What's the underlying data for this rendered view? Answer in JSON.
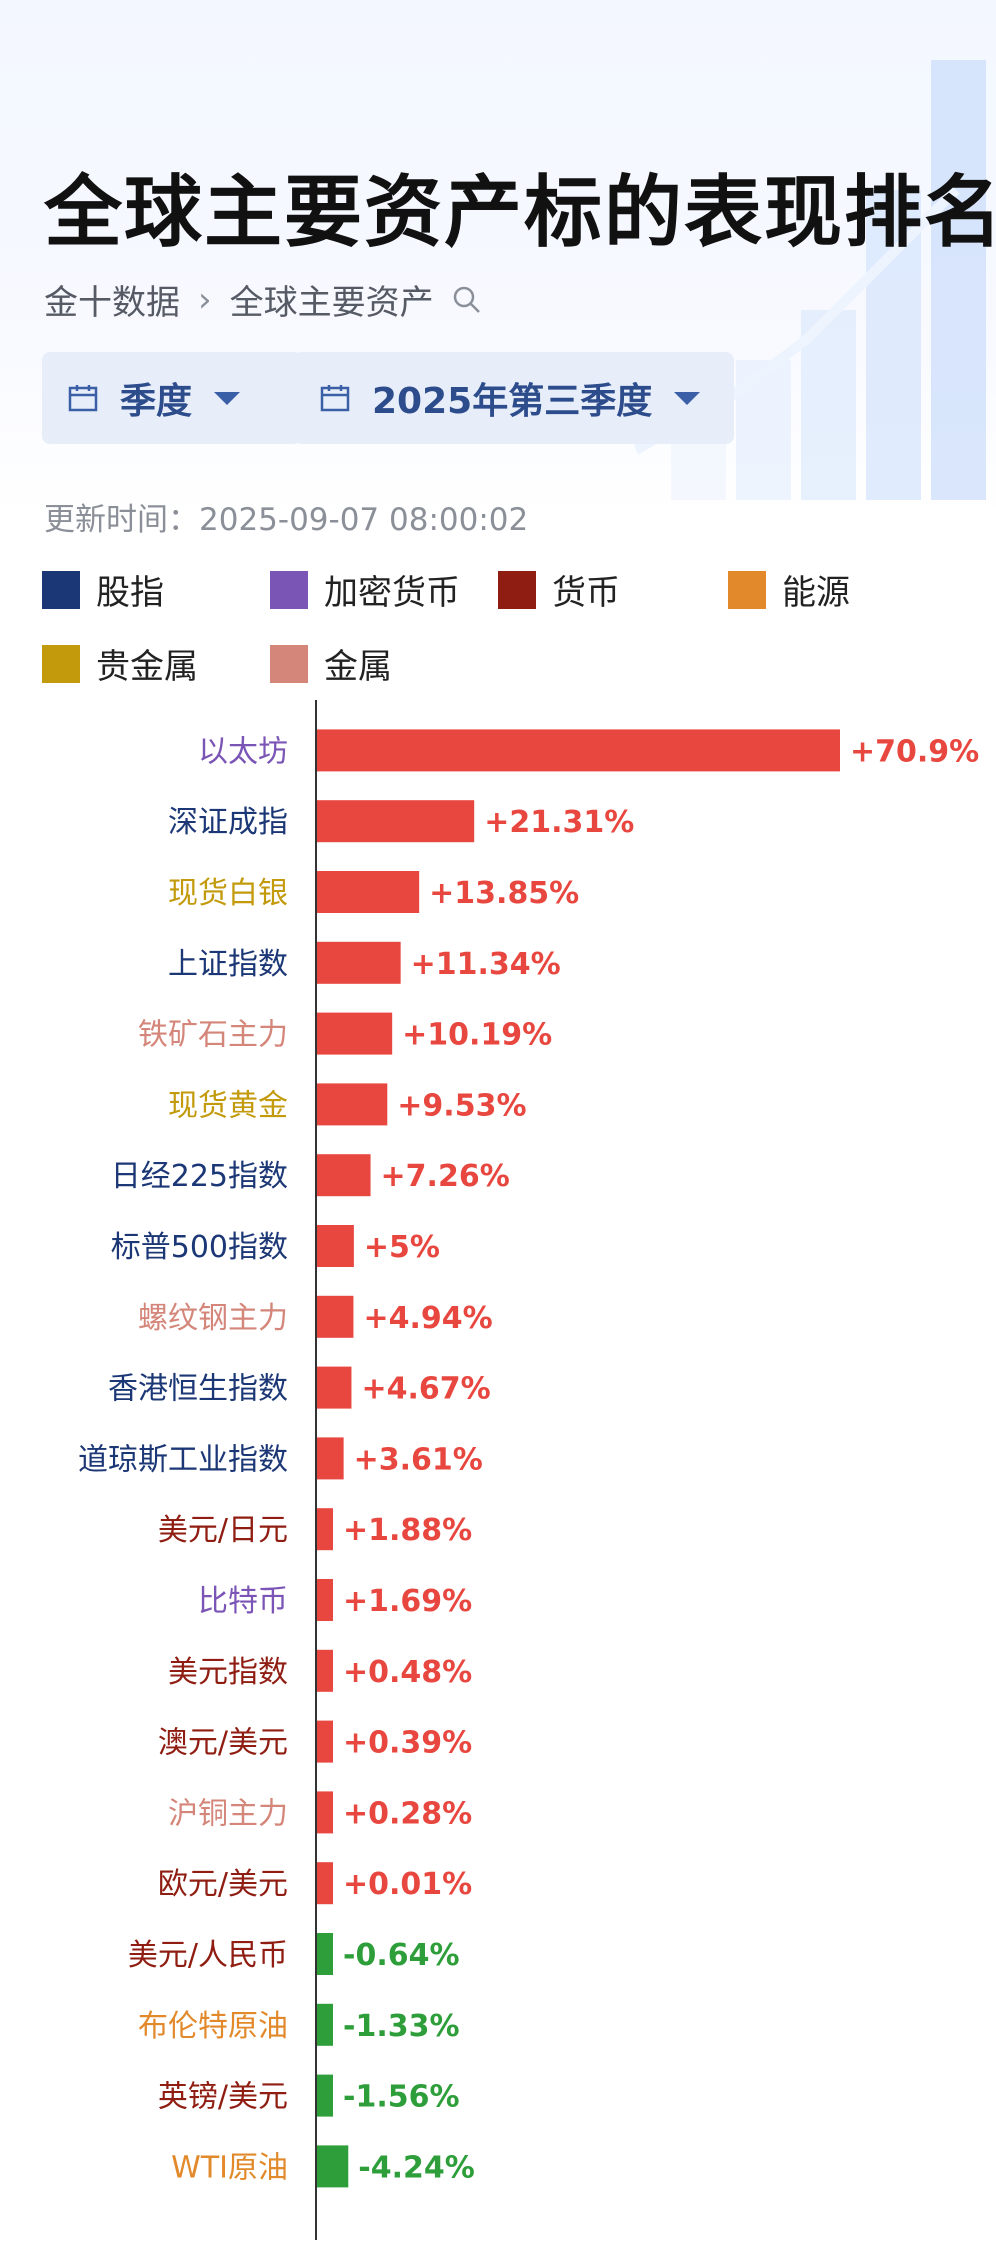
{
  "page": {
    "title": "全球主要资产标的表现排名",
    "breadcrumb": [
      "金十数据",
      "全球主要资产"
    ],
    "filters": {
      "period": "季度",
      "quarter": "2025年第三季度"
    },
    "updated_label": "更新时间：",
    "updated_time": "2025-09-07 08:00:02"
  },
  "legend": [
    {
      "name": "股指",
      "color": "#1c3776"
    },
    {
      "name": "加密货币",
      "color": "#7b55b5"
    },
    {
      "name": "货币",
      "color": "#8f1d12"
    },
    {
      "name": "能源",
      "color": "#e28a2b"
    },
    {
      "name": "贵金属",
      "color": "#c29a0b"
    },
    {
      "name": "金属",
      "color": "#d5867a"
    }
  ],
  "colors": {
    "positive": "#e8473f",
    "negative": "#2e9e3a",
    "axis": "#333333"
  },
  "chart_data": {
    "type": "bar",
    "orientation": "horizontal",
    "unit": "%",
    "categories": [
      "以太坊",
      "深证成指",
      "现货白银",
      "上证指数",
      "铁矿石主力",
      "现货黄金",
      "日经225指数",
      "标普500指数",
      "螺纹钢主力",
      "香港恒生指数",
      "道琼斯工业指数",
      "美元/日元",
      "比特币",
      "美元指数",
      "澳元/美元",
      "沪铜主力",
      "欧元/美元",
      "美元/人民币",
      "布伦特原油",
      "英镑/美元",
      "WTI原油"
    ],
    "values": [
      70.9,
      21.31,
      13.85,
      11.34,
      10.19,
      9.53,
      7.26,
      5,
      4.94,
      4.67,
      3.61,
      1.88,
      1.69,
      0.48,
      0.39,
      0.28,
      0.01,
      -0.64,
      -1.33,
      -1.56,
      -4.24
    ],
    "value_labels": [
      "+70.9%",
      "+21.31%",
      "+13.85%",
      "+11.34%",
      "+10.19%",
      "+9.53%",
      "+7.26%",
      "+5%",
      "+4.94%",
      "+4.67%",
      "+3.61%",
      "+1.88%",
      "+1.69%",
      "+0.48%",
      "+0.39%",
      "+0.28%",
      "+0.01%",
      "-0.64%",
      "-1.33%",
      "-1.56%",
      "-4.24%"
    ],
    "asset_class": [
      "加密货币",
      "股指",
      "贵金属",
      "股指",
      "金属",
      "贵金属",
      "股指",
      "股指",
      "金属",
      "股指",
      "股指",
      "货币",
      "加密货币",
      "货币",
      "货币",
      "金属",
      "货币",
      "货币",
      "能源",
      "货币",
      "能源"
    ]
  }
}
